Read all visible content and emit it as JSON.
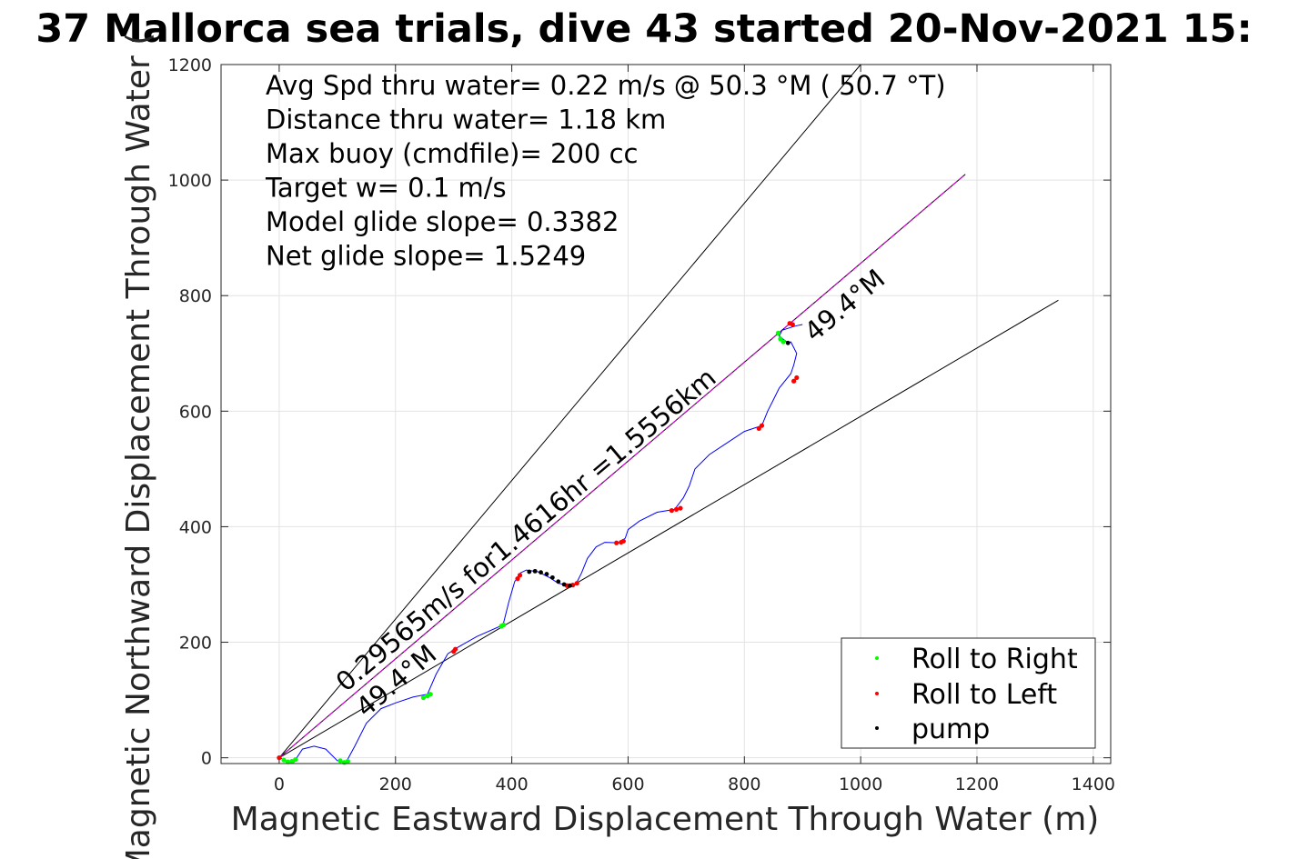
{
  "chart_data": {
    "type": "line",
    "title": "37 Mallorca sea trials, dive 43 started 20-Nov-2021 15:",
    "xlabel": "Magnetic Eastward Displacement Through Water (m)",
    "ylabel": "Magnetic Northward Displacement Through Water (",
    "xlim": [
      -100,
      1430
    ],
    "ylim": [
      -10,
      1200
    ],
    "xticks": [
      0,
      200,
      400,
      600,
      800,
      1000,
      1200,
      1400
    ],
    "yticks": [
      0,
      200,
      400,
      600,
      800,
      1000,
      1200
    ],
    "grid": true,
    "legend_position": "bottom-right",
    "stats": [
      "Avg Spd thru water=  0.22 m/s @  50.3 °M ( 50.7 °T)",
      "Distance thru water=  1.18 km",
      "Max buoy (cmdfile)= 200 cc",
      "Target w= 0.1 m/s",
      "Model glide slope= 0.3382",
      "Net glide slope= 1.5249"
    ],
    "annotations": {
      "speed_line_label": "0.29565m/s for1.4616hr =1.5556km",
      "heading_label_lower": "49.4°M",
      "heading_label_upper": "49.4°M"
    },
    "reference_lines": [
      {
        "name": "upper-bound",
        "color": "#000000",
        "x": [
          0,
          1000
        ],
        "y": [
          0,
          1200
        ]
      },
      {
        "name": "lower-bound",
        "color": "#000000",
        "x": [
          0,
          1340
        ],
        "y": [
          0,
          792
        ]
      },
      {
        "name": "heading-line",
        "color": "#000000",
        "x": [
          0,
          1180
        ],
        "y": [
          0,
          1010
        ]
      },
      {
        "name": "model-line",
        "color": "#cc00cc",
        "x": [
          0,
          1180
        ],
        "y": [
          0,
          1010
        ]
      }
    ],
    "track": {
      "color": "#0000ff",
      "x": [
        0,
        12,
        25,
        40,
        60,
        80,
        100,
        115,
        130,
        150,
        175,
        200,
        230,
        255,
        270,
        290,
        305,
        340,
        385,
        395,
        405,
        410,
        415,
        425,
        445,
        465,
        480,
        500,
        510,
        520,
        530,
        545,
        560,
        585,
        595,
        600,
        620,
        650,
        680,
        695,
        705,
        715,
        740,
        770,
        800,
        830,
        840,
        850,
        860,
        880,
        885,
        890,
        880,
        875,
        860,
        865,
        880,
        890,
        900
      ],
      "y": [
        0,
        -5,
        -8,
        15,
        20,
        15,
        -5,
        -8,
        20,
        60,
        85,
        95,
        105,
        110,
        145,
        180,
        190,
        210,
        230,
        270,
        305,
        312,
        320,
        325,
        322,
        312,
        302,
        298,
        300,
        320,
        345,
        365,
        373,
        372,
        380,
        395,
        410,
        425,
        430,
        450,
        470,
        500,
        525,
        545,
        565,
        575,
        600,
        620,
        640,
        665,
        680,
        700,
        720,
        718,
        730,
        740,
        745,
        748,
        750
      ]
    },
    "series": [
      {
        "name": "Roll to Right",
        "color": "#00ff00",
        "x": [
          8,
          15,
          22,
          28,
          105,
          112,
          118,
          248,
          255,
          260,
          382,
          386,
          858,
          862,
          867
        ],
        "y": [
          -4,
          -7,
          -6,
          -3,
          -5,
          -8,
          -6,
          104,
          107,
          110,
          228,
          230,
          735,
          725,
          720
        ]
      },
      {
        "name": "Roll to Left",
        "color": "#ff0000",
        "x": [
          0,
          300,
          303,
          410,
          414,
          495,
          505,
          512,
          580,
          588,
          592,
          675,
          683,
          690,
          825,
          830,
          885,
          890,
          878,
          883
        ],
        "y": [
          0,
          184,
          188,
          310,
          316,
          298,
          299,
          302,
          372,
          373,
          375,
          428,
          430,
          432,
          570,
          575,
          652,
          658,
          752,
          750
        ]
      },
      {
        "name": "pump",
        "color": "#000000",
        "x": [
          430,
          440,
          450,
          460,
          470,
          480,
          490,
          500,
          875
        ],
        "y": [
          322,
          323,
          321,
          318,
          312,
          305,
          300,
          298,
          718
        ]
      }
    ]
  }
}
